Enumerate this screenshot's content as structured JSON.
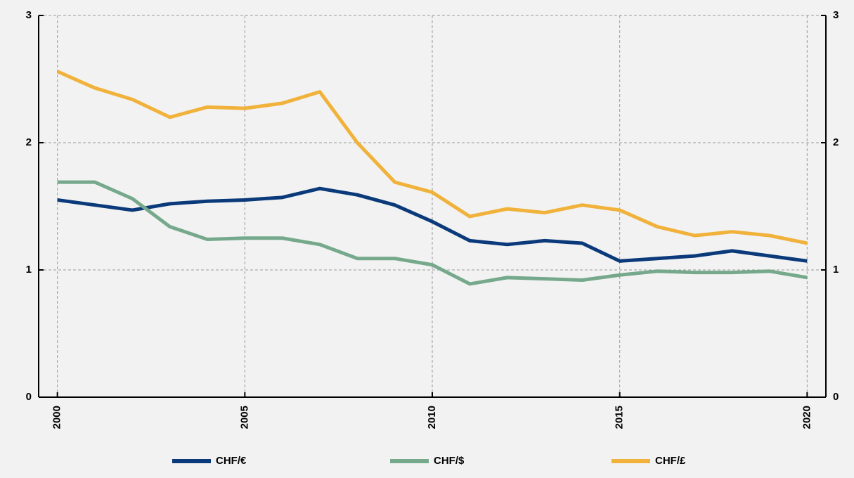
{
  "chart_data": {
    "type": "line",
    "x": [
      2000,
      2001,
      2002,
      2003,
      2004,
      2005,
      2006,
      2007,
      2008,
      2009,
      2010,
      2011,
      2012,
      2013,
      2014,
      2015,
      2016,
      2017,
      2018,
      2019,
      2020
    ],
    "xlim": [
      1999.5,
      2020.5
    ],
    "xticks": [
      2000,
      2005,
      2010,
      2015,
      2020
    ],
    "ylim": [
      0,
      3
    ],
    "yticks": [
      0,
      1,
      2,
      3
    ],
    "y2lim": [
      0,
      3
    ],
    "y2ticks": [
      0,
      1,
      2,
      3
    ],
    "grid": true,
    "legend": "bottom",
    "series": [
      {
        "name": "CHF/€",
        "color": "#0b3a7a",
        "values": [
          1.55,
          1.51,
          1.47,
          1.52,
          1.54,
          1.55,
          1.57,
          1.64,
          1.59,
          1.51,
          1.38,
          1.23,
          1.2,
          1.23,
          1.21,
          1.07,
          1.09,
          1.11,
          1.15,
          1.11,
          1.07
        ]
      },
      {
        "name": "CHF/$",
        "color": "#76a98c",
        "values": [
          1.69,
          1.69,
          1.56,
          1.34,
          1.24,
          1.25,
          1.25,
          1.2,
          1.09,
          1.09,
          1.04,
          0.89,
          0.94,
          0.93,
          0.92,
          0.96,
          0.99,
          0.98,
          0.98,
          0.99,
          0.94
        ]
      },
      {
        "name": "CHF/£",
        "color": "#f0b23a",
        "values": [
          2.56,
          2.43,
          2.34,
          2.2,
          2.28,
          2.27,
          2.31,
          2.4,
          2.0,
          1.69,
          1.61,
          1.42,
          1.48,
          1.45,
          1.51,
          1.47,
          1.34,
          1.27,
          1.3,
          1.27,
          1.21
        ]
      }
    ]
  }
}
